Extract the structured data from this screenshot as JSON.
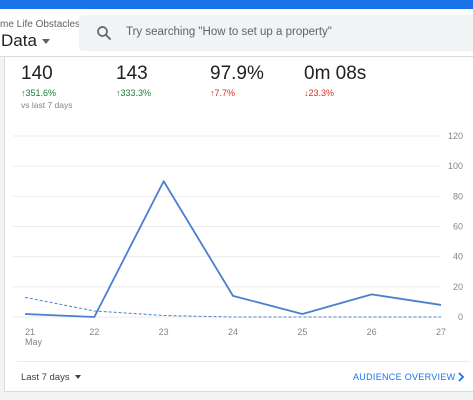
{
  "header": {
    "account_name": "me Life Obstacles",
    "property_name": "Data",
    "search_placeholder": "Try searching \"How to set up a property\""
  },
  "metrics": [
    {
      "value": "140",
      "change": "↑351.6%",
      "direction": "up-good"
    },
    {
      "value": "143",
      "change": "↑333.3%",
      "direction": "up-good"
    },
    {
      "value": "97.9%",
      "change": "↑7.7%",
      "direction": "up-bad"
    },
    {
      "value": "0m 08s",
      "change": "↓23.3%",
      "direction": "down-bad"
    }
  ],
  "vs_label": "vs last 7 days",
  "footer": {
    "date_range": "Last 7 days",
    "link": "AUDIENCE OVERVIEW"
  },
  "colors": {
    "accent": "#1a73e8",
    "line": "#4a7fd0",
    "up": "#188038",
    "down": "#d93025"
  },
  "chart_data": {
    "type": "line",
    "x": [
      "21",
      "22",
      "23",
      "24",
      "25",
      "26",
      "27"
    ],
    "x_sublabel": "May",
    "yticks": [
      "120",
      "100",
      "80",
      "60",
      "40",
      "20",
      "0"
    ],
    "ylim": [
      0,
      120
    ],
    "series": [
      {
        "values": [
          2,
          0,
          90,
          14,
          2,
          15,
          8
        ],
        "style": "solid"
      },
      {
        "values": [
          13,
          4,
          1,
          0,
          0,
          0,
          0
        ],
        "style": "dashed"
      }
    ]
  }
}
